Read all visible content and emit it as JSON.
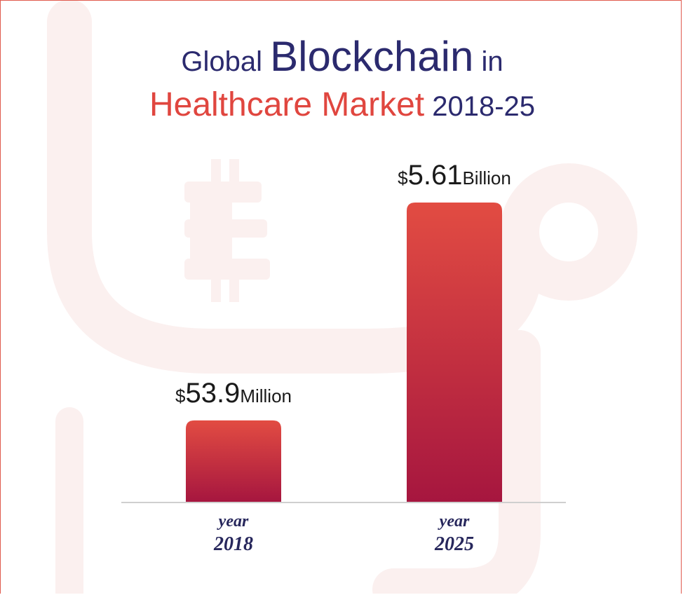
{
  "title": {
    "line1_pre": "Global",
    "line1_big": "Blockchain",
    "line1_post": "in",
    "line2_red": "Healthcare Market",
    "line2_post": "2018-25"
  },
  "colors": {
    "title_navy": "#2b2a6e",
    "title_red": "#e0463f",
    "bar_top": "#e24c42",
    "bar_bottom": "#a6163f",
    "watermark": "#fbf0ef"
  },
  "icons": [
    "bitcoin-icon",
    "stethoscope-icon"
  ],
  "chart_data": {
    "type": "bar",
    "title": "Global Blockchain in Healthcare Market 2018-25",
    "categories": [
      "2018",
      "2025"
    ],
    "category_prefix": "year",
    "values_usd_million": [
      53.9,
      5610
    ],
    "value_labels": [
      {
        "currency": "$",
        "number": "53.9",
        "unit": "Million"
      },
      {
        "currency": "$",
        "number": "5.61",
        "unit": "Billion"
      }
    ],
    "bar_height_ratio": [
      0.272,
      1.0
    ],
    "grid": false,
    "legend": "none"
  }
}
